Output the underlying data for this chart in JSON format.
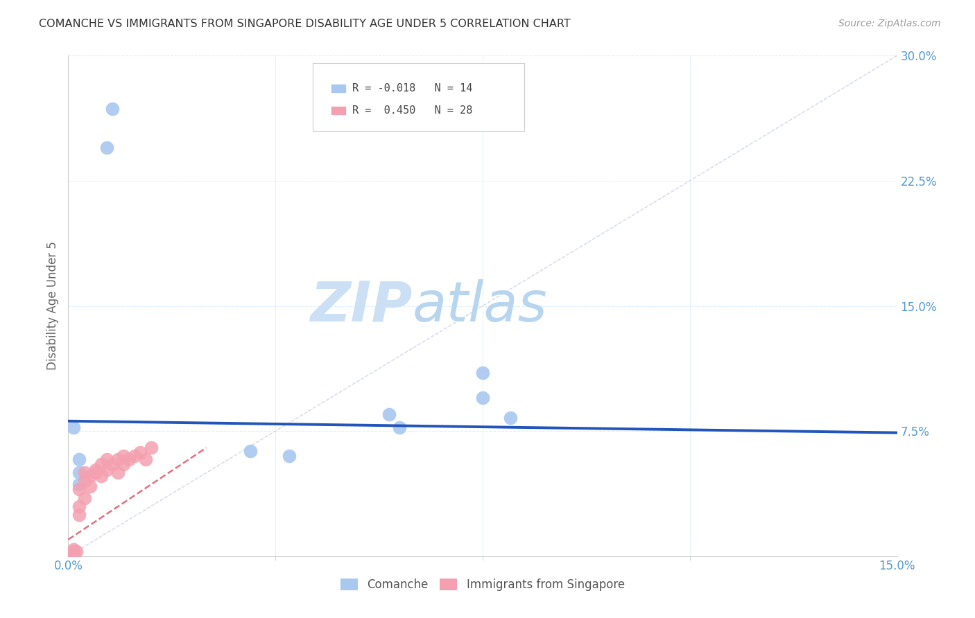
{
  "title": "COMANCHE VS IMMIGRANTS FROM SINGAPORE DISABILITY AGE UNDER 5 CORRELATION CHART",
  "source": "Source: ZipAtlas.com",
  "ylabel_label": "Disability Age Under 5",
  "x_min": 0.0,
  "x_max": 0.15,
  "y_min": 0.0,
  "y_max": 0.3,
  "legend_label_comanche": "Comanche",
  "legend_label_singapore": "Immigrants from Singapore",
  "comanche_color": "#a8c8f0",
  "singapore_color": "#f4a0b0",
  "trend_comanche_color": "#2255bb",
  "trend_singapore_color": "#e07080",
  "watermark_zip_color": "#cce0f5",
  "watermark_atlas_color": "#b8d5f0",
  "grid_color": "#ddeeff",
  "ref_line_color": "#d0d8e8",
  "comanche_points": [
    [
      0.008,
      0.268
    ],
    [
      0.007,
      0.245
    ],
    [
      0.001,
      0.003
    ],
    [
      0.002,
      0.058
    ],
    [
      0.002,
      0.05
    ],
    [
      0.002,
      0.043
    ],
    [
      0.033,
      0.063
    ],
    [
      0.04,
      0.06
    ],
    [
      0.058,
      0.085
    ],
    [
      0.06,
      0.077
    ],
    [
      0.075,
      0.095
    ],
    [
      0.08,
      0.083
    ],
    [
      0.001,
      0.077
    ],
    [
      0.075,
      0.11
    ]
  ],
  "singapore_points": [
    [
      0.0005,
      0.001
    ],
    [
      0.001,
      0.002
    ],
    [
      0.001,
      0.004
    ],
    [
      0.0015,
      0.003
    ],
    [
      0.002,
      0.025
    ],
    [
      0.002,
      0.03
    ],
    [
      0.002,
      0.04
    ],
    [
      0.003,
      0.035
    ],
    [
      0.003,
      0.045
    ],
    [
      0.003,
      0.05
    ],
    [
      0.004,
      0.042
    ],
    [
      0.004,
      0.048
    ],
    [
      0.005,
      0.05
    ],
    [
      0.005,
      0.052
    ],
    [
      0.006,
      0.048
    ],
    [
      0.006,
      0.055
    ],
    [
      0.007,
      0.052
    ],
    [
      0.007,
      0.058
    ],
    [
      0.008,
      0.055
    ],
    [
      0.009,
      0.05
    ],
    [
      0.009,
      0.058
    ],
    [
      0.01,
      0.055
    ],
    [
      0.01,
      0.06
    ],
    [
      0.011,
      0.058
    ],
    [
      0.012,
      0.06
    ],
    [
      0.013,
      0.062
    ],
    [
      0.014,
      0.058
    ],
    [
      0.015,
      0.065
    ]
  ],
  "comanche_trend_x": [
    0.0,
    0.15
  ],
  "comanche_trend_y": [
    0.081,
    0.074
  ],
  "singapore_trend_x": [
    0.0,
    0.025
  ],
  "singapore_trend_y": [
    0.01,
    0.065
  ]
}
